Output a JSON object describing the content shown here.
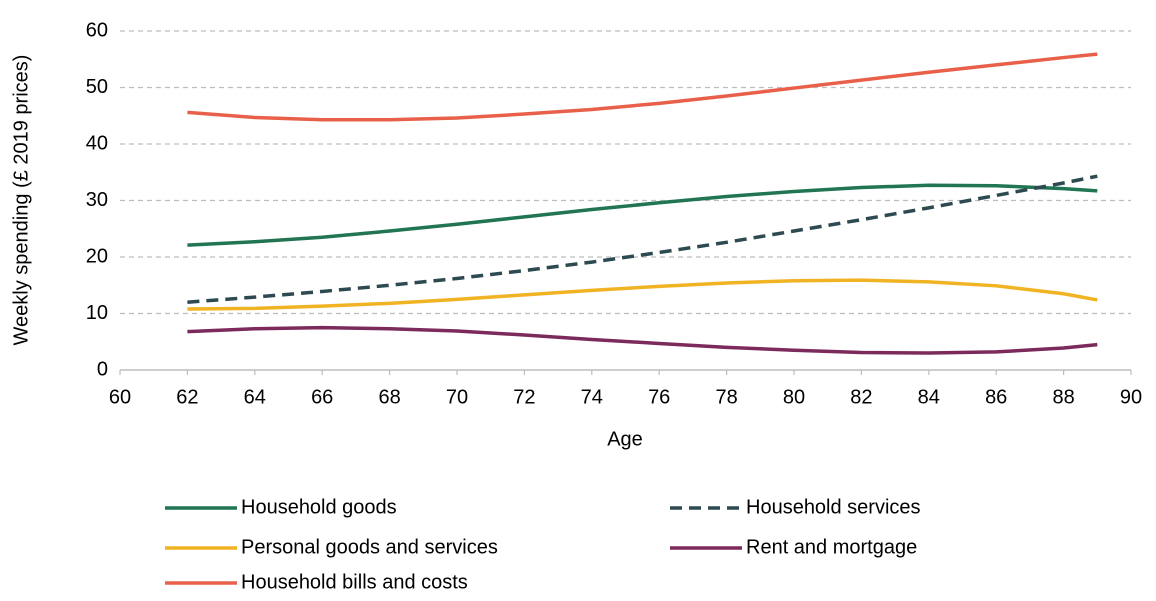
{
  "chart_data": {
    "type": "line",
    "x_label": "Age",
    "y_label": "Weekly spending (£ 2019 prices)",
    "x": [
      62,
      64,
      66,
      68,
      70,
      72,
      74,
      76,
      78,
      80,
      82,
      84,
      86,
      88,
      89
    ],
    "series": [
      {
        "name": "Household goods",
        "color": "#217552",
        "dash": false,
        "values": [
          22.1,
          22.7,
          23.5,
          24.6,
          25.8,
          27.1,
          28.4,
          29.6,
          30.7,
          31.6,
          32.3,
          32.7,
          32.6,
          32.1,
          31.7
        ]
      },
      {
        "name": "Household services",
        "color": "#2d4a50",
        "dash": true,
        "values": [
          12,
          12.9,
          13.9,
          15,
          16.2,
          17.6,
          19.1,
          20.8,
          22.6,
          24.6,
          26.6,
          28.7,
          30.9,
          33.1,
          34.3
        ]
      },
      {
        "name": "Personal goods and services",
        "color": "#f0b323",
        "dash": false,
        "values": [
          10.8,
          10.9,
          11.3,
          11.8,
          12.5,
          13.3,
          14.1,
          14.8,
          15.4,
          15.8,
          15.9,
          15.6,
          14.9,
          13.5,
          12.4
        ]
      },
      {
        "name": "Rent and mortgage",
        "color": "#7c2a5c",
        "dash": false,
        "values": [
          6.8,
          7.3,
          7.5,
          7.3,
          6.9,
          6.2,
          5.4,
          4.7,
          4.0,
          3.5,
          3.1,
          3.0,
          3.2,
          3.9,
          4.5
        ]
      },
      {
        "name": "Household bills and costs",
        "color": "#e8604a",
        "dash": false,
        "values": [
          45.6,
          44.7,
          44.3,
          44.3,
          44.6,
          45.3,
          46.1,
          47.2,
          48.5,
          49.9,
          51.3,
          52.7,
          54.0,
          55.3,
          55.9
        ]
      }
    ],
    "xlim": [
      60,
      90
    ],
    "xticks": [
      60,
      62,
      64,
      66,
      68,
      70,
      72,
      74,
      76,
      78,
      80,
      82,
      84,
      86,
      88,
      90
    ],
    "ylim": [
      0,
      60
    ],
    "yticks": [
      0,
      10,
      20,
      30,
      40,
      50,
      60
    ],
    "grid": true,
    "legend": "bottom"
  }
}
